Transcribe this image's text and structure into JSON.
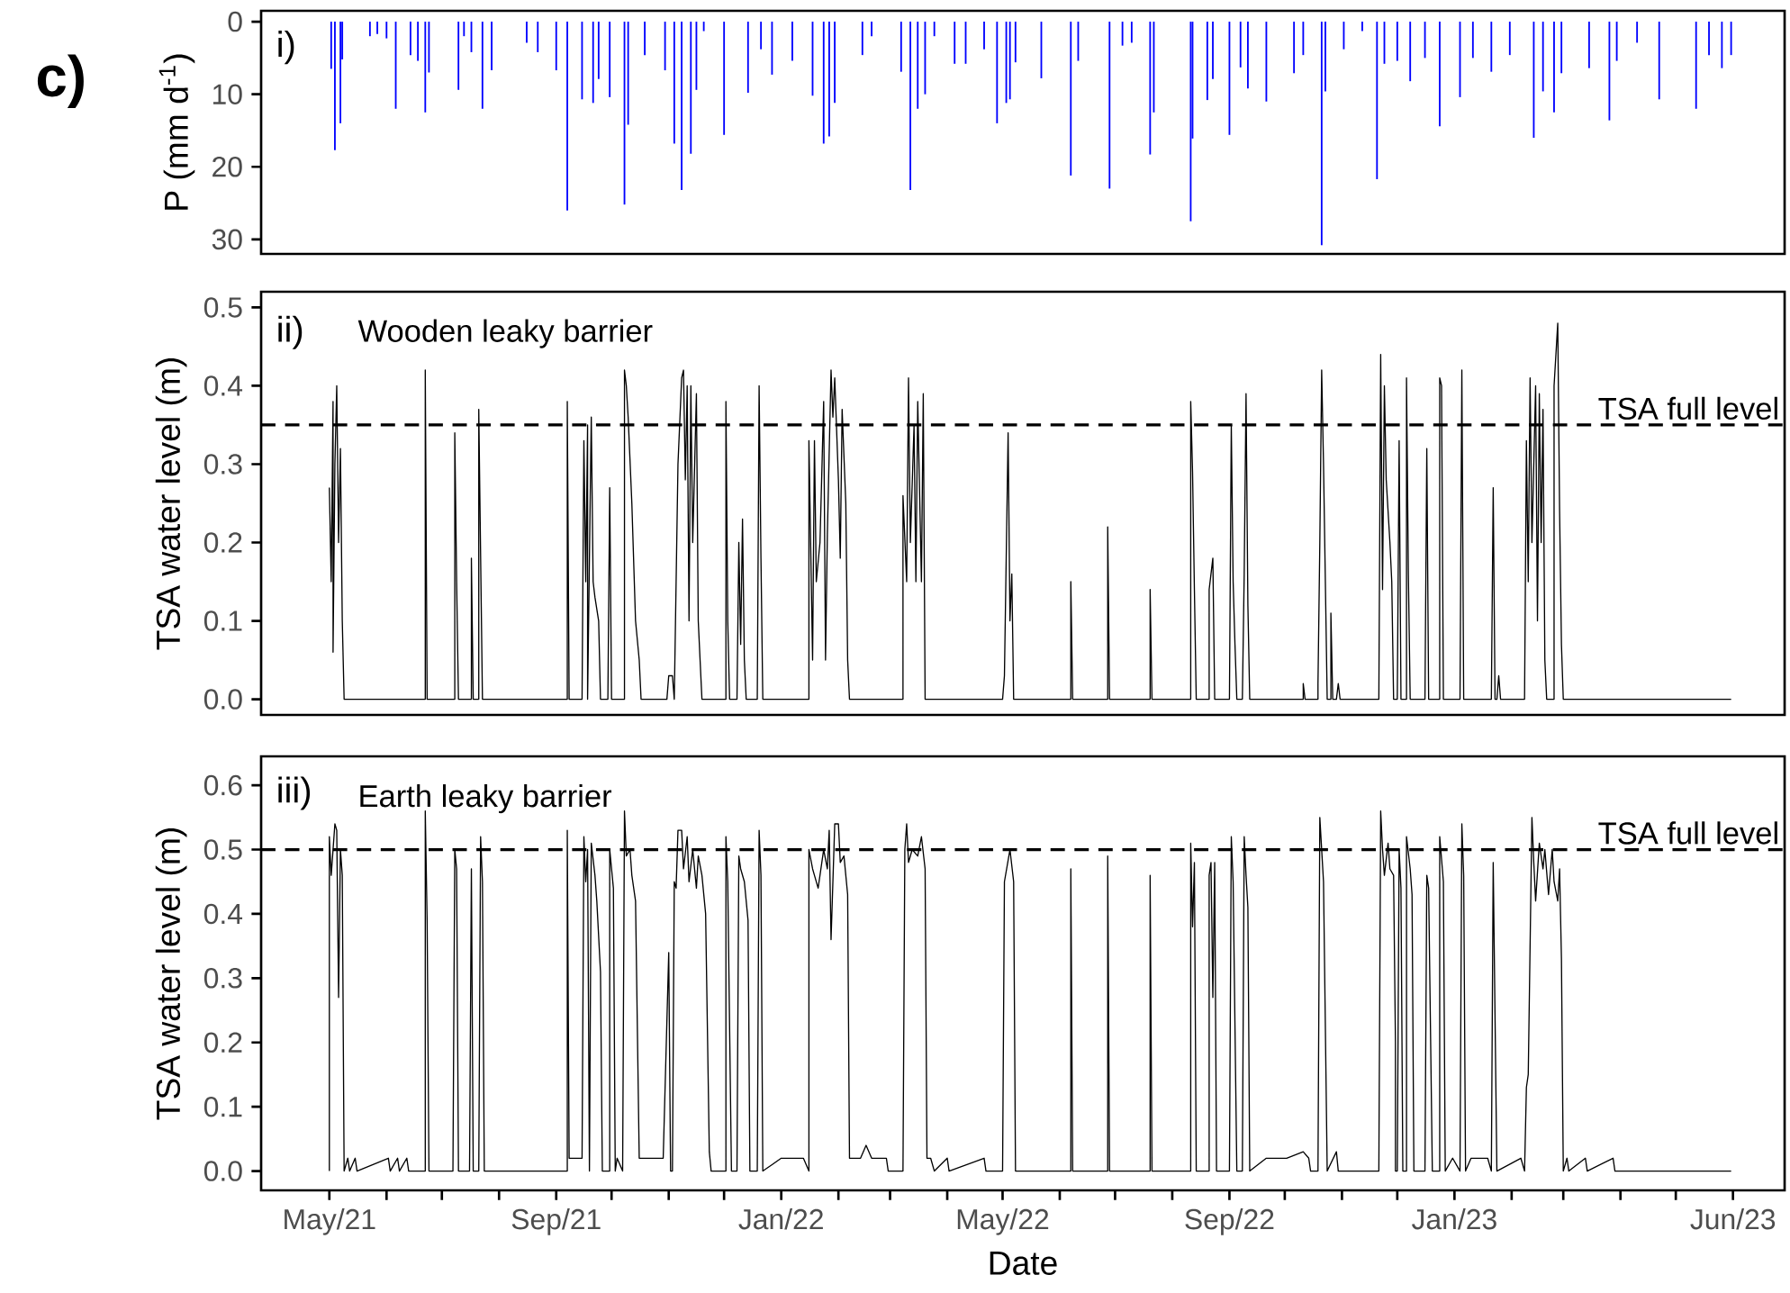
{
  "chart_data": [
    {
      "type": "bar",
      "ylabel": "P (mm d$^{-1}$)",
      "annotations": [
        "i)",
        "c)"
      ],
      "color": "#0000ff",
      "xlim": [
        "2021-03-25",
        "2023-06-29"
      ],
      "ylim": [
        32,
        -1.5
      ],
      "yticks": [
        0,
        10,
        20,
        30
      ],
      "tick_labels": "y",
      "x": [
        "2021-05-02",
        "2021-05-04",
        "2021-05-07",
        "2021-05-08",
        "2021-05-23",
        "2021-05-27",
        "2021-06-01",
        "2021-06-06",
        "2021-06-14",
        "2021-06-18",
        "2021-06-22",
        "2021-06-24",
        "2021-07-10",
        "2021-07-13",
        "2021-07-17",
        "2021-07-23",
        "2021-07-28",
        "2021-08-16",
        "2021-08-22",
        "2021-09-01",
        "2021-09-07",
        "2021-09-15",
        "2021-09-21",
        "2021-09-24",
        "2021-09-30",
        "2021-10-08",
        "2021-10-10",
        "2021-10-19",
        "2021-10-30",
        "2021-11-04",
        "2021-11-08",
        "2021-11-13",
        "2021-11-16",
        "2021-11-20",
        "2021-12-01",
        "2021-12-14",
        "2021-12-21",
        "2021-12-27",
        "2022-01-07",
        "2022-01-18",
        "2022-01-24",
        "2022-01-27",
        "2022-01-30",
        "2022-02-14",
        "2022-02-19",
        "2022-03-07",
        "2022-03-12",
        "2022-03-16",
        "2022-03-20",
        "2022-03-25",
        "2022-04-05",
        "2022-04-11",
        "2022-04-21",
        "2022-04-28",
        "2022-05-03",
        "2022-05-05",
        "2022-05-08",
        "2022-05-22",
        "2022-06-07",
        "2022-06-11",
        "2022-06-28",
        "2022-07-05",
        "2022-07-10",
        "2022-07-20",
        "2022-07-22",
        "2022-08-11",
        "2022-08-12",
        "2022-08-20",
        "2022-08-23",
        "2022-09-01",
        "2022-09-07",
        "2022-09-11",
        "2022-09-21",
        "2022-10-06",
        "2022-10-11",
        "2022-10-21",
        "2022-10-23",
        "2022-11-02",
        "2022-11-12",
        "2022-11-20",
        "2022-11-24",
        "2022-12-01",
        "2022-12-08",
        "2022-12-16",
        "2022-12-24",
        "2023-01-04",
        "2023-01-11",
        "2023-01-21",
        "2023-01-31",
        "2023-02-13",
        "2023-02-18",
        "2023-02-24",
        "2023-02-28",
        "2023-03-15",
        "2023-03-26",
        "2023-03-30",
        "2023-04-10",
        "2023-04-22",
        "2023-05-12",
        "2023-05-19",
        "2023-05-26",
        "2023-05-31"
      ],
      "values": [
        6.5,
        17.7,
        14,
        5.2,
        2,
        1.7,
        2.3,
        12,
        4.6,
        5.4,
        12.5,
        7,
        9.4,
        2,
        4.2,
        12,
        6.7,
        2.9,
        4.2,
        6.7,
        26,
        10.7,
        11.2,
        7.9,
        10.4,
        25.2,
        14.2,
        4.6,
        6.7,
        16.8,
        23.2,
        18.2,
        9.4,
        1.3,
        15.6,
        9.8,
        3.8,
        7.3,
        5.4,
        10.2,
        16.8,
        15.8,
        11.2,
        4.6,
        2,
        6.9,
        23.2,
        12,
        10,
        2,
        5.8,
        5.8,
        3.8,
        14,
        11.2,
        10.7,
        5.6,
        7.8,
        21.2,
        5.4,
        23,
        3.3,
        2.9,
        18.3,
        12.5,
        27.5,
        16.1,
        10.8,
        7.9,
        15.6,
        6.3,
        9.2,
        11,
        7.1,
        4.6,
        30.8,
        9.6,
        3.8,
        1.3,
        21.7,
        5.8,
        5.4,
        8.2,
        5,
        14.4,
        10.4,
        5,
        6.9,
        4.6,
        16,
        9.6,
        12.5,
        7.1,
        6.4,
        13.6,
        5.4,
        2.9,
        10.7,
        12,
        4.6,
        6.4,
        4.6
      ]
    },
    {
      "type": "line",
      "title": "Wooden leaky barrier",
      "ylabel": "TSA water level (m)",
      "annotations": [
        "ii)"
      ],
      "color": "#000000",
      "xlim": [
        "2021-03-25",
        "2023-06-29"
      ],
      "ylim": [
        -0.02,
        0.52
      ],
      "tick_labels": "y",
      "yticks": [
        {
          "value": 0,
          "label": "0.0"
        },
        {
          "value": 0.1,
          "label": "0.1"
        },
        {
          "value": 0.2,
          "label": "0.2"
        },
        {
          "value": 0.3,
          "label": "0.3"
        },
        {
          "value": 0.4,
          "label": "0.4"
        },
        {
          "value": 0.5,
          "label": "0.5"
        }
      ],
      "ref_lines": [
        {
          "axis": "y",
          "value": 0.35,
          "label": "TSA full level",
          "color": "#000000",
          "line_style": "dashed"
        }
      ],
      "x": [
        "2021-05-01",
        "2021-05-02",
        "2021-05-03",
        "2021-05-03",
        "2021-05-04",
        "2021-05-05",
        "2021-05-06",
        "2021-05-07",
        "2021-05-08",
        "2021-05-09",
        "2021-06-22",
        "2021-06-22",
        "2021-06-23",
        "2021-07-08",
        "2021-07-08",
        "2021-07-09",
        "2021-07-10",
        "2021-07-17",
        "2021-07-17",
        "2021-07-18",
        "2021-07-21",
        "2021-07-21",
        "2021-07-23",
        "2021-09-07",
        "2021-09-07",
        "2021-09-08",
        "2021-09-15",
        "2021-09-16",
        "2021-09-17",
        "2021-09-18",
        "2021-09-18",
        "2021-09-20",
        "2021-09-21",
        "2021-09-22",
        "2021-09-24",
        "2021-09-25",
        "2021-09-29",
        "2021-09-30",
        "2021-10-01",
        "2021-10-08",
        "2021-10-08",
        "2021-10-09",
        "2021-10-10",
        "2021-10-12",
        "2021-10-14",
        "2021-10-16",
        "2021-10-17",
        "2021-10-31",
        "2021-11-01",
        "2021-11-03",
        "2021-11-04",
        "2021-11-05",
        "2021-11-06",
        "2021-11-08",
        "2021-11-09",
        "2021-11-10",
        "2021-11-11",
        "2021-11-12",
        "2021-11-13",
        "2021-11-14",
        "2021-11-16",
        "2021-11-17",
        "2021-11-18",
        "2021-11-19",
        "2021-12-02",
        "2021-12-02",
        "2021-12-03",
        "2021-12-04",
        "2021-12-08",
        "2021-12-09",
        "2021-12-10",
        "2021-12-11",
        "2021-12-12",
        "2021-12-13",
        "2021-12-19",
        "2021-12-20",
        "2021-12-21",
        "2021-12-22",
        "2022-01-16",
        "2022-01-16",
        "2022-01-18",
        "2022-01-19",
        "2022-01-20",
        "2022-01-22",
        "2022-01-24",
        "2022-01-25",
        "2022-01-26",
        "2022-01-28",
        "2022-01-29",
        "2022-01-30",
        "2022-02-01",
        "2022-02-02",
        "2022-02-03",
        "2022-02-05",
        "2022-02-06",
        "2022-02-07",
        "2022-03-08",
        "2022-03-08",
        "2022-03-10",
        "2022-03-11",
        "2022-03-12",
        "2022-03-14",
        "2022-03-15",
        "2022-03-16",
        "2022-03-18",
        "2022-03-19",
        "2022-03-20",
        "2022-05-01",
        "2022-05-02",
        "2022-05-04",
        "2022-05-05",
        "2022-05-06",
        "2022-05-07",
        "2022-06-07",
        "2022-06-07",
        "2022-06-08",
        "2022-06-27",
        "2022-06-27",
        "2022-06-28",
        "2022-07-20",
        "2022-07-20",
        "2022-07-21",
        "2022-08-11",
        "2022-08-11",
        "2022-08-12",
        "2022-08-13",
        "2022-08-14",
        "2022-08-21",
        "2022-08-21",
        "2022-08-23",
        "2022-08-24",
        "2022-09-01",
        "2022-09-02",
        "2022-09-03",
        "2022-09-04",
        "2022-09-05",
        "2022-09-08",
        "2022-09-09",
        "2022-09-10",
        "2022-09-11",
        "2022-09-12",
        "2022-10-11",
        "2022-10-11",
        "2022-10-12",
        "2022-10-19",
        "2022-10-19",
        "2022-10-20",
        "2022-10-21",
        "2022-10-22",
        "2022-10-24",
        "2022-10-26",
        "2022-10-26",
        "2022-10-27",
        "2022-10-29",
        "2022-10-30",
        "2022-10-31",
        "2022-11-21",
        "2022-11-22",
        "2022-11-23",
        "2022-11-24",
        "2022-11-25",
        "2022-11-27",
        "2022-11-28",
        "2022-11-29",
        "2022-12-01",
        "2022-12-02",
        "2022-12-03",
        "2022-12-06",
        "2022-12-06",
        "2022-12-07",
        "2022-12-08",
        "2022-12-16",
        "2022-12-17",
        "2022-12-18",
        "2022-12-24",
        "2022-12-24",
        "2022-12-25",
        "2022-12-26",
        "2023-01-04",
        "2023-01-05",
        "2023-01-06",
        "2023-01-21",
        "2023-01-22",
        "2023-01-23",
        "2023-01-24",
        "2023-01-25",
        "2023-01-26",
        "2023-02-08",
        "2023-02-09",
        "2023-02-10",
        "2023-02-11",
        "2023-02-12",
        "2023-02-14",
        "2023-02-15",
        "2023-02-16",
        "2023-02-17",
        "2023-02-18",
        "2023-02-19",
        "2023-02-20",
        "2023-02-24",
        "2023-02-24",
        "2023-02-26",
        "2023-02-27",
        "2023-02-28",
        "2023-03-01",
        "2023-05-31"
      ],
      "values": [
        0.27,
        0.15,
        0.38,
        0.06,
        0.3,
        0.4,
        0.2,
        0.32,
        0.1,
        0,
        0,
        0.42,
        0,
        0,
        0.34,
        0.15,
        0,
        0,
        0.18,
        0,
        0,
        0.37,
        0,
        0,
        0.38,
        0,
        0,
        0.33,
        0.15,
        0.35,
        0,
        0.36,
        0.15,
        0.13,
        0.1,
        0,
        0,
        0.27,
        0,
        0,
        0.42,
        0.4,
        0.36,
        0.25,
        0.1,
        0.05,
        0,
        0,
        0.03,
        0.03,
        0,
        0.15,
        0.3,
        0.41,
        0.42,
        0.28,
        0.4,
        0.1,
        0.4,
        0.2,
        0.39,
        0.1,
        0.05,
        0,
        0,
        0.38,
        0.1,
        0,
        0,
        0.2,
        0.07,
        0.23,
        0.05,
        0,
        0,
        0.4,
        0.18,
        0,
        0,
        0.33,
        0.05,
        0.33,
        0.15,
        0.2,
        0.38,
        0.05,
        0.21,
        0.42,
        0.36,
        0.41,
        0.28,
        0.18,
        0.37,
        0.25,
        0.05,
        0,
        0,
        0.26,
        0.15,
        0.41,
        0.2,
        0.35,
        0.15,
        0.38,
        0.15,
        0.39,
        0,
        0,
        0.03,
        0.34,
        0.1,
        0.16,
        0,
        0,
        0.15,
        0,
        0,
        0.22,
        0,
        0,
        0.14,
        0,
        0,
        0.38,
        0.29,
        0.14,
        0,
        0,
        0.14,
        0.18,
        0,
        0,
        0.35,
        0.15,
        0.07,
        0,
        0,
        0.16,
        0.39,
        0.12,
        0,
        0,
        0.02,
        0,
        0,
        0.02,
        0.2,
        0.42,
        0.3,
        0,
        0,
        0.11,
        0,
        0,
        0.02,
        0,
        0,
        0.44,
        0.14,
        0.4,
        0.28,
        0.2,
        0.15,
        0,
        0,
        0.33,
        0,
        0,
        0.41,
        0.16,
        0,
        0,
        0.32,
        0,
        0,
        0.41,
        0.4,
        0,
        0,
        0.42,
        0,
        0,
        0.27,
        0,
        0,
        0.03,
        0,
        0,
        0.33,
        0.15,
        0.41,
        0.2,
        0.4,
        0.1,
        0.39,
        0.2,
        0.37,
        0.05,
        0,
        0,
        0.4,
        0.48,
        0.24,
        0.07,
        0,
        0
      ]
    },
    {
      "type": "line",
      "title": "Earth leaky barrier",
      "ylabel": "TSA water level (m)",
      "xlabel": "Date",
      "annotations": [
        "iii)"
      ],
      "color": "#000000",
      "xlim": [
        "2021-03-25",
        "2023-06-29"
      ],
      "ylim": [
        -0.03,
        0.645
      ],
      "yticks": [
        {
          "value": 0,
          "label": "0.0"
        },
        {
          "value": 0.1,
          "label": "0.1"
        },
        {
          "value": 0.2,
          "label": "0.2"
        },
        {
          "value": 0.3,
          "label": "0.3"
        },
        {
          "value": 0.4,
          "label": "0.4"
        },
        {
          "value": 0.5,
          "label": "0.5"
        },
        {
          "value": 0.6,
          "label": "0.6"
        }
      ],
      "xticks": [
        {
          "value": "2021-05-01",
          "label": "May/21"
        },
        {
          "value": "2021-06-01",
          "label": null
        },
        {
          "value": "2021-07-01",
          "label": null
        },
        {
          "value": "2021-08-01",
          "label": null
        },
        {
          "value": "2021-09-01",
          "label": "Sep/21"
        },
        {
          "value": "2021-10-01",
          "label": null
        },
        {
          "value": "2021-11-01",
          "label": null
        },
        {
          "value": "2021-12-01",
          "label": null
        },
        {
          "value": "2022-01-01",
          "label": "Jan/22"
        },
        {
          "value": "2022-02-01",
          "label": null
        },
        {
          "value": "2022-03-01",
          "label": null
        },
        {
          "value": "2022-04-01",
          "label": null
        },
        {
          "value": "2022-05-01",
          "label": "May/22"
        },
        {
          "value": "2022-06-01",
          "label": null
        },
        {
          "value": "2022-07-01",
          "label": null
        },
        {
          "value": "2022-08-01",
          "label": null
        },
        {
          "value": "2022-09-01",
          "label": "Sep/22"
        },
        {
          "value": "2022-10-01",
          "label": null
        },
        {
          "value": "2022-11-01",
          "label": null
        },
        {
          "value": "2022-12-01",
          "label": null
        },
        {
          "value": "2023-01-01",
          "label": "Jan/23"
        },
        {
          "value": "2023-02-01",
          "label": null
        },
        {
          "value": "2023-03-01",
          "label": null
        },
        {
          "value": "2023-04-01",
          "label": null
        },
        {
          "value": "2023-05-01",
          "label": null
        },
        {
          "value": "2023-06-01",
          "label": "Jun/23"
        }
      ],
      "ref_lines": [
        {
          "axis": "y",
          "value": 0.5,
          "label": "TSA full level",
          "color": "#000000",
          "line_style": "dashed"
        }
      ],
      "x": [
        "2021-05-01",
        "2021-05-01",
        "2021-05-02",
        "2021-05-04",
        "2021-05-05",
        "2021-05-06",
        "2021-05-07",
        "2021-05-08",
        "2021-05-09",
        "2021-05-11",
        "2021-05-12",
        "2021-05-15",
        "2021-05-16",
        "2021-06-02",
        "2021-06-03",
        "2021-06-07",
        "2021-06-08",
        "2021-06-12",
        "2021-06-13",
        "2021-06-22",
        "2021-06-22",
        "2021-06-23",
        "2021-06-24",
        "2021-07-07",
        "2021-07-08",
        "2021-07-09",
        "2021-07-10",
        "2021-07-16",
        "2021-07-17",
        "2021-07-18",
        "2021-07-21",
        "2021-07-22",
        "2021-07-23",
        "2021-07-24",
        "2021-09-07",
        "2021-09-07",
        "2021-09-08",
        "2021-09-10",
        "2021-09-15",
        "2021-09-16",
        "2021-09-17",
        "2021-09-18",
        "2021-09-19",
        "2021-09-20",
        "2021-09-22",
        "2021-09-23",
        "2021-09-25",
        "2021-09-26",
        "2021-09-30",
        "2021-09-30",
        "2021-10-02",
        "2021-10-03",
        "2021-10-04",
        "2021-10-07",
        "2021-10-08",
        "2021-10-09",
        "2021-10-11",
        "2021-10-12",
        "2021-10-14",
        "2021-10-16",
        "2021-10-23",
        "2021-10-29",
        "2021-11-01",
        "2021-11-02",
        "2021-11-03",
        "2021-11-04",
        "2021-11-05",
        "2021-11-06",
        "2021-11-08",
        "2021-11-09",
        "2021-11-11",
        "2021-11-12",
        "2021-11-14",
        "2021-11-16",
        "2021-11-17",
        "2021-11-19",
        "2021-11-21",
        "2021-11-23",
        "2021-11-24",
        "2021-12-02",
        "2021-12-02",
        "2021-12-03",
        "2021-12-05",
        "2021-12-08",
        "2021-12-09",
        "2021-12-10",
        "2021-12-12",
        "2021-12-14",
        "2021-12-15",
        "2021-12-19",
        "2021-12-20",
        "2021-12-21",
        "2021-12-22",
        "2021-12-27",
        "2022-01-01",
        "2022-01-08",
        "2022-01-13",
        "2022-01-16",
        "2022-01-16",
        "2022-01-18",
        "2022-01-19",
        "2022-01-21",
        "2022-01-23",
        "2022-01-24",
        "2022-01-26",
        "2022-01-27",
        "2022-01-28",
        "2022-01-30",
        "2022-02-01",
        "2022-02-02",
        "2022-02-04",
        "2022-02-06",
        "2022-02-07",
        "2022-02-13",
        "2022-02-16",
        "2022-02-19",
        "2022-02-27",
        "2022-02-28",
        "2022-03-08",
        "2022-03-09",
        "2022-03-10",
        "2022-03-11",
        "2022-03-13",
        "2022-03-16",
        "2022-03-18",
        "2022-03-20",
        "2022-03-21",
        "2022-03-23",
        "2022-03-25",
        "2022-04-01",
        "2022-04-02",
        "2022-04-21",
        "2022-04-22",
        "2022-05-01",
        "2022-05-02",
        "2022-05-05",
        "2022-05-07",
        "2022-05-08",
        "2022-06-07",
        "2022-06-07",
        "2022-06-08",
        "2022-06-27",
        "2022-06-27",
        "2022-06-28",
        "2022-07-20",
        "2022-07-20",
        "2022-07-21",
        "2022-08-11",
        "2022-08-11",
        "2022-08-12",
        "2022-08-13",
        "2022-08-14",
        "2022-08-21",
        "2022-08-21",
        "2022-08-22",
        "2022-08-23",
        "2022-08-24",
        "2022-08-25",
        "2022-09-01",
        "2022-09-02",
        "2022-09-03",
        "2022-09-05",
        "2022-09-08",
        "2022-09-09",
        "2022-09-10",
        "2022-09-11",
        "2022-09-12",
        "2022-09-21",
        "2022-09-25",
        "2022-10-02",
        "2022-10-11",
        "2022-10-14",
        "2022-10-15",
        "2022-10-19",
        "2022-10-20",
        "2022-10-22",
        "2022-10-24",
        "2022-10-29",
        "2022-10-30",
        "2022-11-21",
        "2022-11-22",
        "2022-11-23",
        "2022-11-24",
        "2022-11-26",
        "2022-11-27",
        "2022-11-29",
        "2022-11-30",
        "2022-11-30",
        "2022-12-01",
        "2022-12-02",
        "2022-12-03",
        "2022-12-04",
        "2022-12-06",
        "2022-12-06",
        "2022-12-08",
        "2022-12-09",
        "2022-12-10",
        "2022-12-16",
        "2022-12-17",
        "2022-12-18",
        "2022-12-20",
        "2022-12-24",
        "2022-12-24",
        "2022-12-26",
        "2022-12-27",
        "2022-12-31",
        "2023-01-04",
        "2023-01-05",
        "2023-01-06",
        "2023-01-07",
        "2023-01-10",
        "2023-01-14",
        "2023-01-19",
        "2023-01-21",
        "2023-01-22",
        "2023-01-24",
        "2023-02-06",
        "2023-02-08",
        "2023-02-09",
        "2023-02-10",
        "2023-02-12",
        "2023-02-13",
        "2023-02-14",
        "2023-02-16",
        "2023-02-18",
        "2023-02-19",
        "2023-02-21",
        "2023-02-23",
        "2023-02-24",
        "2023-02-26",
        "2023-02-27",
        "2023-02-28",
        "2023-03-01",
        "2023-03-03",
        "2023-03-04",
        "2023-03-13",
        "2023-03-14",
        "2023-03-28",
        "2023-03-29",
        "2023-05-31"
      ],
      "values": [
        0,
        0.52,
        0.46,
        0.54,
        0.53,
        0.27,
        0.5,
        0.46,
        0,
        0.02,
        0,
        0.02,
        0,
        0.02,
        0,
        0.02,
        0,
        0.02,
        0,
        0,
        0.56,
        0.39,
        0,
        0,
        0.5,
        0.47,
        0,
        0,
        0.47,
        0,
        0,
        0.52,
        0.45,
        0,
        0,
        0.53,
        0.02,
        0.02,
        0.02,
        0.52,
        0.45,
        0.5,
        0,
        0.51,
        0.46,
        0.42,
        0.31,
        0,
        0,
        0.5,
        0.44,
        0,
        0.02,
        0,
        0.56,
        0.49,
        0.5,
        0.46,
        0.42,
        0.02,
        0.02,
        0.02,
        0.34,
        0,
        0,
        0.45,
        0.44,
        0.53,
        0.53,
        0.47,
        0.52,
        0.45,
        0.5,
        0.44,
        0.49,
        0.46,
        0.4,
        0.03,
        0,
        0,
        0.52,
        0.45,
        0,
        0,
        0.49,
        0.47,
        0.45,
        0.39,
        0,
        0,
        0.53,
        0.46,
        0,
        0.01,
        0.02,
        0.02,
        0.02,
        0,
        0.5,
        0.47,
        0.46,
        0.44,
        0.48,
        0.5,
        0.47,
        0.53,
        0.36,
        0.54,
        0.54,
        0.48,
        0.49,
        0.43,
        0.02,
        0.02,
        0.04,
        0.02,
        0.02,
        0,
        0,
        0.5,
        0.54,
        0.48,
        0.5,
        0.49,
        0.52,
        0.47,
        0.02,
        0.02,
        0,
        0.02,
        0,
        0.02,
        0,
        0,
        0.45,
        0.5,
        0.45,
        0,
        0,
        0.47,
        0,
        0,
        0.49,
        0,
        0,
        0.46,
        0,
        0,
        0.51,
        0.38,
        0.48,
        0,
        0,
        0.46,
        0.48,
        0.27,
        0.48,
        0,
        0,
        0.52,
        0.45,
        0,
        0,
        0.52,
        0.46,
        0.41,
        0,
        0.02,
        0.02,
        0.02,
        0.03,
        0.02,
        0,
        0,
        0.55,
        0.45,
        0,
        0.03,
        0,
        0,
        0.56,
        0.5,
        0.46,
        0.51,
        0.47,
        0.46,
        0.2,
        0,
        0,
        0.5,
        0.44,
        0,
        0,
        0.52,
        0.47,
        0.43,
        0,
        0,
        0.46,
        0.44,
        0,
        0,
        0.52,
        0.45,
        0,
        0.02,
        0,
        0.54,
        0.46,
        0,
        0.02,
        0.02,
        0.02,
        0,
        0.48,
        0,
        0.02,
        0,
        0.13,
        0.15,
        0.55,
        0.48,
        0.42,
        0.51,
        0.47,
        0.5,
        0.43,
        0.5,
        0.45,
        0.42,
        0.47,
        0.33,
        0,
        0.02,
        0,
        0.02,
        0,
        0.02,
        0,
        0
      ]
    }
  ]
}
